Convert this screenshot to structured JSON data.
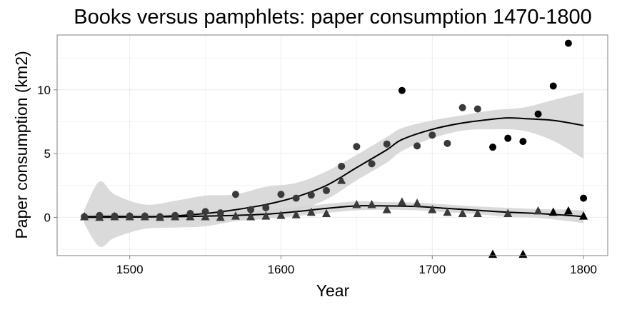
{
  "chart_data": {
    "type": "scatter",
    "title": "Books versus pamphlets: paper consumption 1470-1800",
    "xlabel": "Year",
    "ylabel": "Paper consumption (km2)",
    "xlim": [
      1452,
      1816
    ],
    "ylim": [
      -3.0,
      14.3
    ],
    "xticks": [
      1500,
      1600,
      1700,
      1800
    ],
    "yticks": [
      0,
      5,
      10
    ],
    "grid": true,
    "legend": "none",
    "series": [
      {
        "marker": "circle",
        "x": [
          1470,
          1480,
          1490,
          1500,
          1510,
          1520,
          1530,
          1540,
          1550,
          1560,
          1570,
          1580,
          1590,
          1600,
          1610,
          1620,
          1630,
          1640,
          1650,
          1660,
          1670,
          1680,
          1690,
          1700,
          1710,
          1720,
          1730,
          1740,
          1750,
          1760,
          1770,
          1780,
          1790,
          1800
        ],
        "y": [
          0.05,
          0.15,
          0.1,
          0.1,
          0.1,
          0.05,
          0.15,
          0.3,
          0.45,
          0.35,
          1.8,
          0.6,
          0.75,
          1.8,
          1.5,
          1.75,
          2.1,
          4.0,
          5.55,
          4.2,
          5.75,
          9.95,
          5.6,
          6.45,
          5.8,
          8.6,
          8.5,
          5.5,
          6.2,
          5.95,
          8.1,
          10.3,
          13.65,
          1.5
        ],
        "fit": [
          [
            1470,
            0.05
          ],
          [
            1490,
            0.08
          ],
          [
            1510,
            0.05
          ],
          [
            1530,
            0.12
          ],
          [
            1550,
            0.3
          ],
          [
            1570,
            0.6
          ],
          [
            1590,
            1.0
          ],
          [
            1610,
            1.6
          ],
          [
            1630,
            2.5
          ],
          [
            1650,
            3.9
          ],
          [
            1670,
            5.3
          ],
          [
            1680,
            6.1
          ],
          [
            1700,
            6.9
          ],
          [
            1720,
            7.4
          ],
          [
            1740,
            7.7
          ],
          [
            1750,
            7.8
          ],
          [
            1760,
            7.75
          ],
          [
            1780,
            7.6
          ],
          [
            1800,
            7.2
          ]
        ],
        "band_upper": [
          [
            1470,
            0.6
          ],
          [
            1480,
            2.8
          ],
          [
            1490,
            1.8
          ],
          [
            1510,
            1.0
          ],
          [
            1530,
            1.3
          ],
          [
            1550,
            1.7
          ],
          [
            1570,
            1.8
          ],
          [
            1590,
            2.4
          ],
          [
            1610,
            2.7
          ],
          [
            1630,
            3.6
          ],
          [
            1650,
            4.9
          ],
          [
            1670,
            6.3
          ],
          [
            1680,
            7.0
          ],
          [
            1700,
            7.6
          ],
          [
            1720,
            8.0
          ],
          [
            1740,
            8.4
          ],
          [
            1760,
            8.6
          ],
          [
            1780,
            9.2
          ],
          [
            1800,
            9.8
          ]
        ],
        "band_lower": [
          [
            1470,
            -0.5
          ],
          [
            1480,
            -2.3
          ],
          [
            1490,
            -1.6
          ],
          [
            1510,
            -0.9
          ],
          [
            1530,
            -0.8
          ],
          [
            1550,
            -0.7
          ],
          [
            1570,
            -0.3
          ],
          [
            1590,
            -0.1
          ],
          [
            1610,
            0.5
          ],
          [
            1630,
            1.4
          ],
          [
            1650,
            2.9
          ],
          [
            1670,
            4.3
          ],
          [
            1680,
            5.2
          ],
          [
            1700,
            6.2
          ],
          [
            1720,
            6.8
          ],
          [
            1740,
            6.9
          ],
          [
            1760,
            6.8
          ],
          [
            1780,
            6.0
          ],
          [
            1800,
            4.6
          ]
        ]
      },
      {
        "marker": "triangle",
        "x": [
          1470,
          1480,
          1490,
          1500,
          1510,
          1520,
          1530,
          1540,
          1550,
          1560,
          1570,
          1580,
          1590,
          1600,
          1610,
          1620,
          1630,
          1640,
          1650,
          1660,
          1670,
          1680,
          1690,
          1700,
          1710,
          1720,
          1730,
          1740,
          1750,
          1760,
          1770,
          1780,
          1790,
          1800
        ],
        "y": [
          0.05,
          0.0,
          0.05,
          0.05,
          0.05,
          0.0,
          0.05,
          0.05,
          0.05,
          0.0,
          0.1,
          0.05,
          0.1,
          0.15,
          0.2,
          0.4,
          0.3,
          2.9,
          1.0,
          1.0,
          0.6,
          1.2,
          1.1,
          0.6,
          0.4,
          0.3,
          0.3,
          -2.9,
          0.3,
          -2.9,
          0.5,
          0.4,
          0.5,
          0.1
        ],
        "fit": [
          [
            1470,
            0.0
          ],
          [
            1500,
            0.02
          ],
          [
            1530,
            0.05
          ],
          [
            1560,
            0.12
          ],
          [
            1590,
            0.25
          ],
          [
            1610,
            0.45
          ],
          [
            1630,
            0.7
          ],
          [
            1650,
            0.9
          ],
          [
            1670,
            0.9
          ],
          [
            1690,
            0.85
          ],
          [
            1710,
            0.7
          ],
          [
            1730,
            0.55
          ],
          [
            1750,
            0.4
          ],
          [
            1770,
            0.3
          ],
          [
            1790,
            0.15
          ],
          [
            1800,
            0.05
          ]
        ],
        "band_upper": [
          [
            1470,
            0.3
          ],
          [
            1500,
            0.25
          ],
          [
            1530,
            0.3
          ],
          [
            1560,
            0.45
          ],
          [
            1590,
            0.6
          ],
          [
            1610,
            0.8
          ],
          [
            1630,
            1.05
          ],
          [
            1650,
            1.25
          ],
          [
            1670,
            1.2
          ],
          [
            1690,
            1.15
          ],
          [
            1710,
            1.0
          ],
          [
            1730,
            0.85
          ],
          [
            1750,
            0.75
          ],
          [
            1770,
            0.65
          ],
          [
            1790,
            0.6
          ],
          [
            1800,
            0.55
          ]
        ],
        "band_lower": [
          [
            1470,
            -0.3
          ],
          [
            1500,
            -0.2
          ],
          [
            1530,
            -0.2
          ],
          [
            1560,
            -0.2
          ],
          [
            1590,
            -0.1
          ],
          [
            1610,
            0.1
          ],
          [
            1630,
            0.35
          ],
          [
            1650,
            0.55
          ],
          [
            1670,
            0.6
          ],
          [
            1690,
            0.55
          ],
          [
            1710,
            0.4
          ],
          [
            1730,
            0.25
          ],
          [
            1750,
            0.05
          ],
          [
            1770,
            -0.05
          ],
          [
            1790,
            -0.3
          ],
          [
            1800,
            -0.45
          ]
        ]
      }
    ],
    "colors": {
      "point": "#3a3a3a",
      "point_dark": "#000000",
      "fit_line": "#000000",
      "band": "#d3d3d3",
      "grid": "#ebebeb",
      "panel_border": "#7f7f7f",
      "text": "#000000"
    }
  }
}
